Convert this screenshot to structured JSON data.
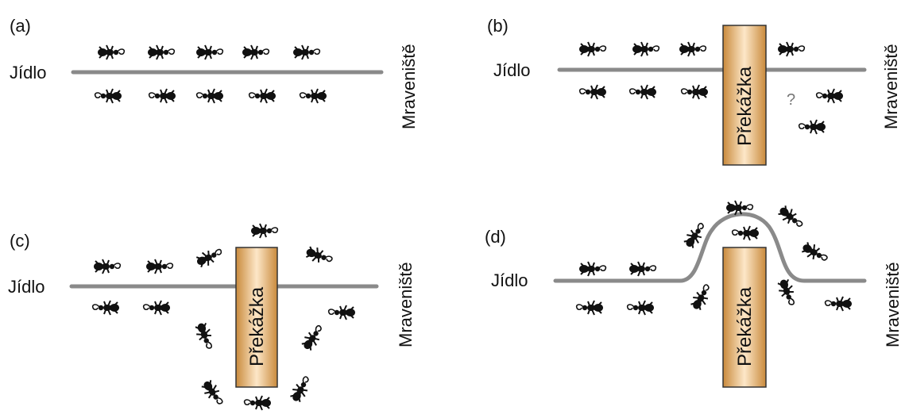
{
  "panels": [
    {
      "id": "a",
      "label": "(a)",
      "food": "Jídlo",
      "nest": "Mraveniště",
      "obstacle": null
    },
    {
      "id": "b",
      "label": "(b)",
      "food": "Jídlo",
      "nest": "Mraveniště",
      "obstacle": "Překážka",
      "question": "?"
    },
    {
      "id": "c",
      "label": "(c)",
      "food": "Jídlo",
      "nest": "Mraveniště",
      "obstacle": "Překážka"
    },
    {
      "id": "d",
      "label": "(d)",
      "food": "Jídlo",
      "nest": "Mraveniště",
      "obstacle": "Překážka"
    }
  ],
  "colors": {
    "trail": "#8a8a8a",
    "ant": "#111111",
    "obstacle_edge": "#c98a3c",
    "obstacle_mid": "#fde7c8"
  }
}
